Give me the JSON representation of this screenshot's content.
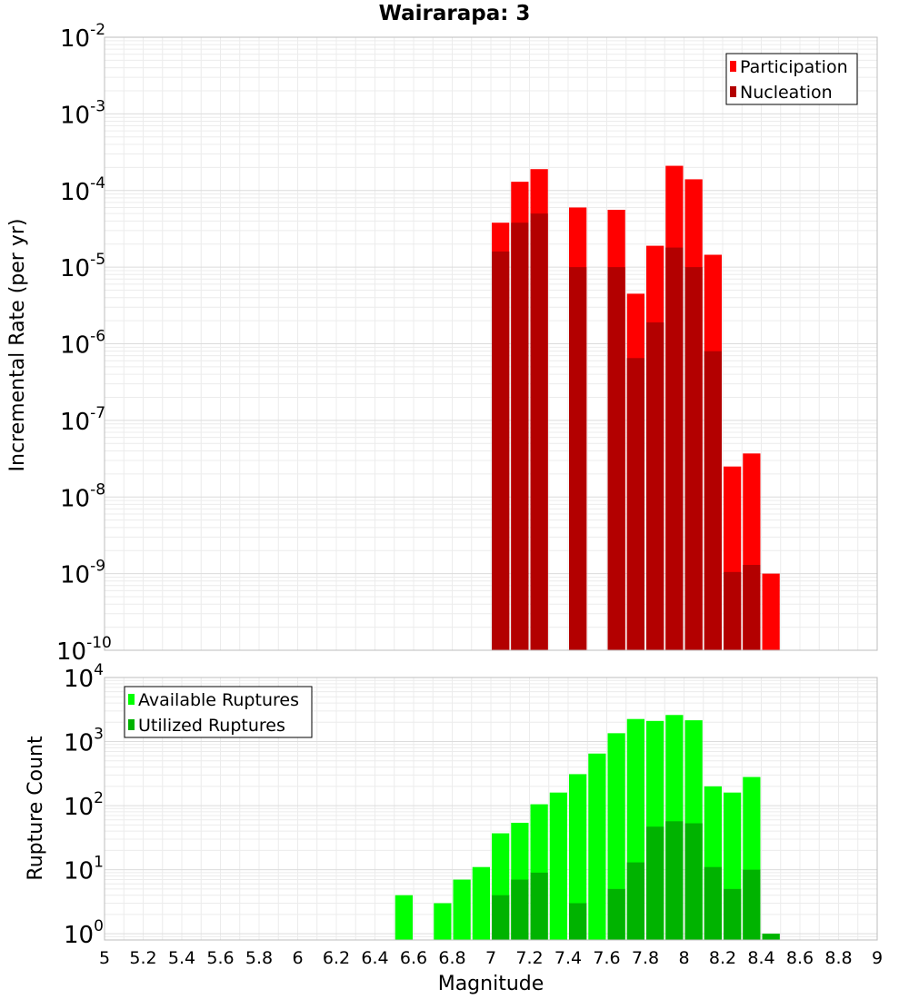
{
  "chart_data": [
    {
      "type": "bar",
      "title": "Wairarapa: 3",
      "xlabel": "",
      "ylabel": "Incremental Rate (per yr)",
      "y_scale": "log",
      "ylim": [
        1e-10,
        0.01
      ],
      "xlim": [
        5,
        9
      ],
      "bin_width": 0.1,
      "y_ticks": [
        {
          "base": "10",
          "exp": "-10"
        },
        {
          "base": "10",
          "exp": "-9"
        },
        {
          "base": "10",
          "exp": "-8"
        },
        {
          "base": "10",
          "exp": "-7"
        },
        {
          "base": "10",
          "exp": "-6"
        },
        {
          "base": "10",
          "exp": "-5"
        },
        {
          "base": "10",
          "exp": "-4"
        },
        {
          "base": "10",
          "exp": "-3"
        },
        {
          "base": "10",
          "exp": "-2"
        }
      ],
      "grid": true,
      "legend_position": "top-right",
      "series": [
        {
          "name": "Participation",
          "color": "#ff0000",
          "x": [
            7.05,
            7.15,
            7.25,
            7.45,
            7.65,
            7.75,
            7.85,
            7.95,
            8.05,
            8.15,
            8.25,
            8.35,
            8.45
          ],
          "values": [
            3.8e-05,
            0.00013,
            0.00019,
            6e-05,
            5.6e-05,
            4.5e-06,
            1.9e-05,
            0.00021,
            0.00014,
            1.45e-05,
            2.5e-08,
            3.7e-08,
            1e-09
          ]
        },
        {
          "name": "Nucleation",
          "color": "#b30000",
          "x": [
            7.05,
            7.15,
            7.25,
            7.45,
            7.65,
            7.75,
            7.85,
            7.95,
            8.05,
            8.15,
            8.25,
            8.35
          ],
          "values": [
            1.6e-05,
            3.8e-05,
            5e-05,
            1e-05,
            1e-05,
            6.5e-07,
            1.9e-06,
            1.8e-05,
            1e-05,
            8e-07,
            1.05e-09,
            1.3e-09
          ]
        }
      ]
    },
    {
      "type": "bar",
      "title": "",
      "xlabel": "Magnitude",
      "ylabel": "Rupture Count",
      "y_scale": "log",
      "ylim": [
        0.8,
        10000
      ],
      "xlim": [
        5,
        9
      ],
      "bin_width": 0.1,
      "x_ticks": [
        "5",
        "5.2",
        "5.4",
        "5.6",
        "5.8",
        "6",
        "6.2",
        "6.4",
        "6.6",
        "6.8",
        "7",
        "7.2",
        "7.4",
        "7.6",
        "7.8",
        "8",
        "8.2",
        "8.4",
        "8.6",
        "8.8",
        "9"
      ],
      "y_ticks": [
        {
          "base": "10",
          "exp": "0"
        },
        {
          "base": "10",
          "exp": "1"
        },
        {
          "base": "10",
          "exp": "2"
        },
        {
          "base": "10",
          "exp": "3"
        },
        {
          "base": "10",
          "exp": "4"
        }
      ],
      "grid": true,
      "legend_position": "top-left",
      "series": [
        {
          "name": "Available Ruptures",
          "color": "#00ff00",
          "x": [
            6.55,
            6.75,
            6.85,
            6.95,
            7.05,
            7.15,
            7.25,
            7.35,
            7.45,
            7.55,
            7.65,
            7.75,
            7.85,
            7.95,
            8.05,
            8.15,
            8.25,
            8.35,
            8.45
          ],
          "values": [
            4,
            3,
            7,
            11,
            37,
            54,
            105,
            160,
            310,
            650,
            1350,
            2250,
            2100,
            2600,
            2150,
            200,
            160,
            280,
            1
          ]
        },
        {
          "name": "Utilized Ruptures",
          "color": "#00b300",
          "x": [
            7.05,
            7.15,
            7.25,
            7.45,
            7.65,
            7.75,
            7.85,
            7.95,
            8.05,
            8.15,
            8.25,
            8.35,
            8.45
          ],
          "values": [
            4,
            7,
            9,
            3,
            5,
            13,
            47,
            57,
            53,
            11,
            5,
            10,
            1
          ]
        }
      ]
    }
  ]
}
